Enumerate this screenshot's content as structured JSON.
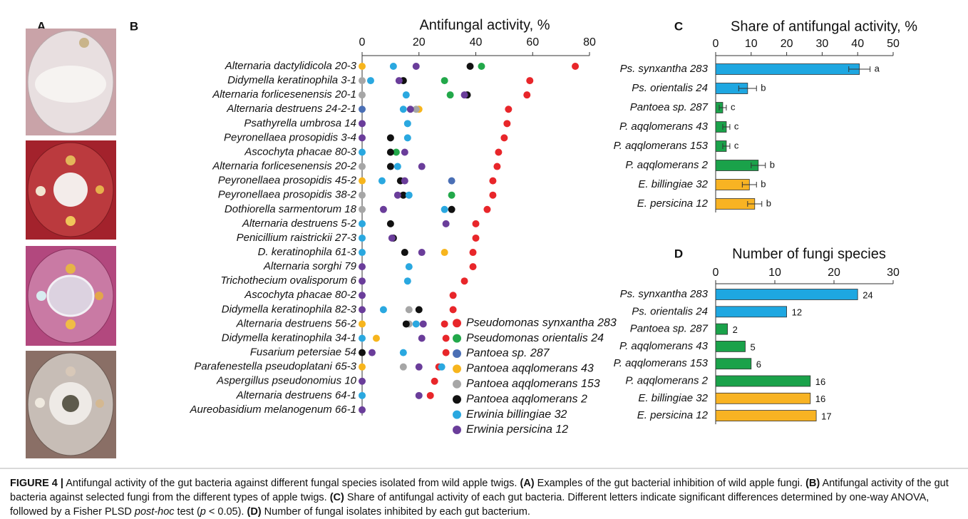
{
  "panel_a": {
    "label": "A"
  },
  "chart_data": [
    {
      "type": "dot",
      "panel_label": "B",
      "title": "Antifungal activity, %",
      "xlim": [
        0,
        80
      ],
      "xticks": [
        0,
        20,
        40,
        60,
        80
      ],
      "legend": "lower right",
      "categories": [
        "Alternaria dactylidicola 20-3",
        "Didymella keratinophila 3-1",
        "Alternaria forlicesenensis 20-1",
        "Alternaria destruens 24-2-1",
        "Psathyrella umbrosa 14",
        "Peyronellaea prosopidis 3-4",
        "Ascochyta phacae 80-3",
        "Alternaria  forlicesenensis 20-2",
        "Peyronellaea prosopidis 45-2",
        "Peyronellaea prosopidis 38-2",
        "Dothiorella sarmentorum 18",
        "Alternaria destruens 5-2",
        "Penicillium raistrickii 27-3",
        "D. keratinophila 61-3",
        "Alternaria sorghi 79",
        "Trichothecium ovalisporum 6",
        "Ascochyta phacae 80-2",
        "Didymella keratinophila 82-3",
        "Alternaria  destruens 56-2",
        "Didymella  keratinophila 34-1",
        "Fusarium petersiae 54",
        "Parafenestella pseudoplatani 65-3",
        "Aspergillus pseudonomius 10",
        "Alternaria destruens 64-1",
        "Aureobasidium melanogenum 66-1"
      ],
      "series": [
        {
          "name": "Pseudomonas synxantha 283",
          "color": "#e8262a",
          "values": [
            75,
            59,
            58,
            51.5,
            51,
            50,
            48,
            47.5,
            46,
            46,
            44,
            40,
            40,
            39,
            39,
            36,
            32,
            32,
            29,
            29.5,
            29.5,
            27,
            25.5,
            24,
            null
          ]
        },
        {
          "name": "Pseudomonas orientalis 24",
          "color": "#22a84a",
          "values": [
            42,
            29,
            31,
            null,
            null,
            null,
            12,
            null,
            null,
            31.5,
            null,
            null,
            null,
            null,
            null,
            null,
            null,
            null,
            null,
            null,
            null,
            null,
            null,
            null,
            null
          ]
        },
        {
          "name": "Pantoea sp. 287",
          "color": "#4a6fb5",
          "values": [
            null,
            null,
            null,
            0,
            null,
            null,
            null,
            null,
            31.5,
            null,
            null,
            null,
            null,
            null,
            null,
            null,
            null,
            null,
            null,
            null,
            null,
            null,
            null,
            null,
            null
          ]
        },
        {
          "name": "Pantoea aqqlomerans 43",
          "color": "#f7b51d",
          "values": [
            0,
            null,
            null,
            20,
            null,
            null,
            null,
            null,
            0,
            null,
            null,
            null,
            null,
            29,
            null,
            null,
            null,
            null,
            0,
            5,
            null,
            0,
            null,
            null,
            null
          ]
        },
        {
          "name": "Pantoea aqqlomerans 153",
          "color": "#a6a6a6",
          "values": [
            null,
            0,
            0,
            19,
            null,
            null,
            null,
            0,
            null,
            0,
            0,
            null,
            null,
            null,
            null,
            null,
            null,
            16.5,
            16.5,
            null,
            null,
            14.5,
            null,
            null,
            null
          ]
        },
        {
          "name": "Pantoea aqqlomerans 2",
          "color": "#111111",
          "values": [
            38,
            14.5,
            37,
            null,
            null,
            10,
            10,
            10,
            13.5,
            14.5,
            31.5,
            10,
            11,
            15,
            null,
            null,
            null,
            20,
            15.5,
            null,
            0,
            null,
            null,
            null,
            null
          ]
        },
        {
          "name": "Erwinia billingiae 32",
          "color": "#2aa8e0",
          "values": [
            11,
            3,
            15.5,
            14.5,
            16,
            16,
            0,
            12.5,
            7,
            16.5,
            29,
            0,
            0,
            0,
            16.5,
            16,
            null,
            7.5,
            19,
            0,
            14.5,
            28,
            null,
            0,
            null
          ]
        },
        {
          "name": "Erwinia persicina 12",
          "color": "#6a3d9a",
          "values": [
            19,
            13,
            36,
            17,
            0,
            0,
            15,
            21,
            15,
            12.5,
            7.5,
            29.5,
            10.5,
            21,
            0,
            0,
            0,
            0,
            21.5,
            21,
            3.5,
            20,
            0,
            20,
            0
          ]
        }
      ]
    },
    {
      "type": "hbar",
      "panel_label": "C",
      "title": "Share of antifungal activity, %",
      "xlim": [
        0,
        50
      ],
      "xticks": [
        0,
        10,
        20,
        30,
        40,
        50
      ],
      "categories": [
        "Ps. synxantha 283",
        "Ps. orientalis 24",
        "Pantoea sp. 287",
        "P. aqqlomerans 43",
        "P. aqqlomerans 153",
        "P. aqqlomerans 2",
        "E. billingiae 32",
        "E. persicina 12"
      ],
      "values": [
        40.5,
        9,
        2,
        3,
        3,
        12,
        9.5,
        11
      ],
      "errors": [
        3,
        2.5,
        1,
        1,
        1,
        2,
        2,
        2
      ],
      "annotations": [
        "a",
        "b",
        "c",
        "c",
        "c",
        "b",
        "b",
        "b"
      ],
      "colors": [
        "#1ea7e1",
        "#1ea7e1",
        "#1aa24a",
        "#1aa24a",
        "#1aa24a",
        "#1aa24a",
        "#f8b323",
        "#f8b323"
      ]
    },
    {
      "type": "hbar",
      "panel_label": "D",
      "title": "Number of fungi species",
      "xlim": [
        0,
        30
      ],
      "xticks": [
        0,
        10,
        20,
        30
      ],
      "categories": [
        "Ps. synxantha 283",
        "Ps. orientalis 24",
        "Pantoea sp. 287",
        "P. aqqlomerans 43",
        "P. aqqlomerans 153",
        "P. aqqlomerans 2",
        "E. billingiae 32",
        "E. persicina 12"
      ],
      "values": [
        24,
        12,
        2,
        5,
        6,
        16,
        16,
        17
      ],
      "colors": [
        "#1ea7e1",
        "#1ea7e1",
        "#1aa24a",
        "#1aa24a",
        "#1aa24a",
        "#1aa24a",
        "#f8b323",
        "#f8b323"
      ]
    }
  ],
  "caption": [
    {
      "text": "FIGURE 4 |",
      "bold": true
    },
    {
      "text": " Antifungal activity of the gut bacteria against different fungal species isolated from wild apple twigs. "
    },
    {
      "text": "(A)",
      "bold": true
    },
    {
      "text": " Examples of the gut bacterial inhibition of wild apple fungi. "
    },
    {
      "text": "(B)",
      "bold": true
    },
    {
      "text": " Antifungal activity of the gut bacteria against selected fungi from the different types of apple twigs. "
    },
    {
      "text": "(C)",
      "bold": true
    },
    {
      "text": " Share of antifungal activity of each gut bacteria. Different letters indicate significant differences determined by one-way ANOVA, followed by a Fisher PLSD "
    },
    {
      "text": "post-hoc",
      "italic": true
    },
    {
      "text": " test ("
    },
    {
      "text": "p",
      "italic": true
    },
    {
      "text": " < 0.05). "
    },
    {
      "text": "(D)",
      "bold": true
    },
    {
      "text": " Number of fungal isolates inhibited by each gut bacterium."
    }
  ]
}
